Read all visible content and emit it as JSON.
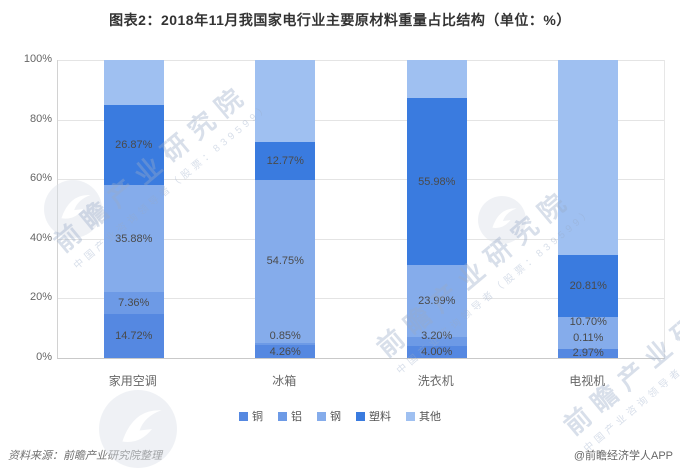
{
  "title": "图表2：2018年11月我国家电行业主要原材料重量占比结构（单位：%）",
  "footer": {
    "source": "资料来源：前瞻产业研究院整理",
    "credit": "@前瞻经济学人APP"
  },
  "watermark": {
    "brand": "前瞻产业研究院",
    "sub": "中国产业咨询领导者（股票：839599）"
  },
  "chart_data": {
    "type": "bar",
    "stacked": true,
    "percent_stacked": true,
    "unit": "%",
    "title": "图表2：2018年11月我国家电行业主要原材料重量占比结构（单位：%）",
    "categories": [
      "家用空调",
      "冰箱",
      "洗衣机",
      "电视机"
    ],
    "series": [
      {
        "name": "铜",
        "color": "#5588e1",
        "show_label": true,
        "values": [
          14.72,
          4.26,
          4.0,
          2.97
        ]
      },
      {
        "name": "铝",
        "color": "#6d9ae6",
        "show_label": true,
        "values": [
          7.36,
          0.85,
          3.2,
          0.11
        ]
      },
      {
        "name": "钢",
        "color": "#85aceb",
        "show_label": true,
        "values": [
          35.88,
          54.75,
          23.99,
          10.7
        ]
      },
      {
        "name": "塑料",
        "color": "#3a7bdf",
        "show_label": true,
        "values": [
          26.87,
          12.77,
          55.98,
          20.81
        ]
      },
      {
        "name": "其他",
        "color": "#9fc0f1",
        "show_label": false,
        "values": [
          15.17,
          27.37,
          12.83,
          65.41
        ]
      }
    ],
    "yticks": [
      "100%",
      "80%",
      "60%",
      "40%",
      "20%",
      "0%"
    ],
    "ylim": [
      0,
      100
    ],
    "grid": true,
    "legend_position": "bottom"
  }
}
